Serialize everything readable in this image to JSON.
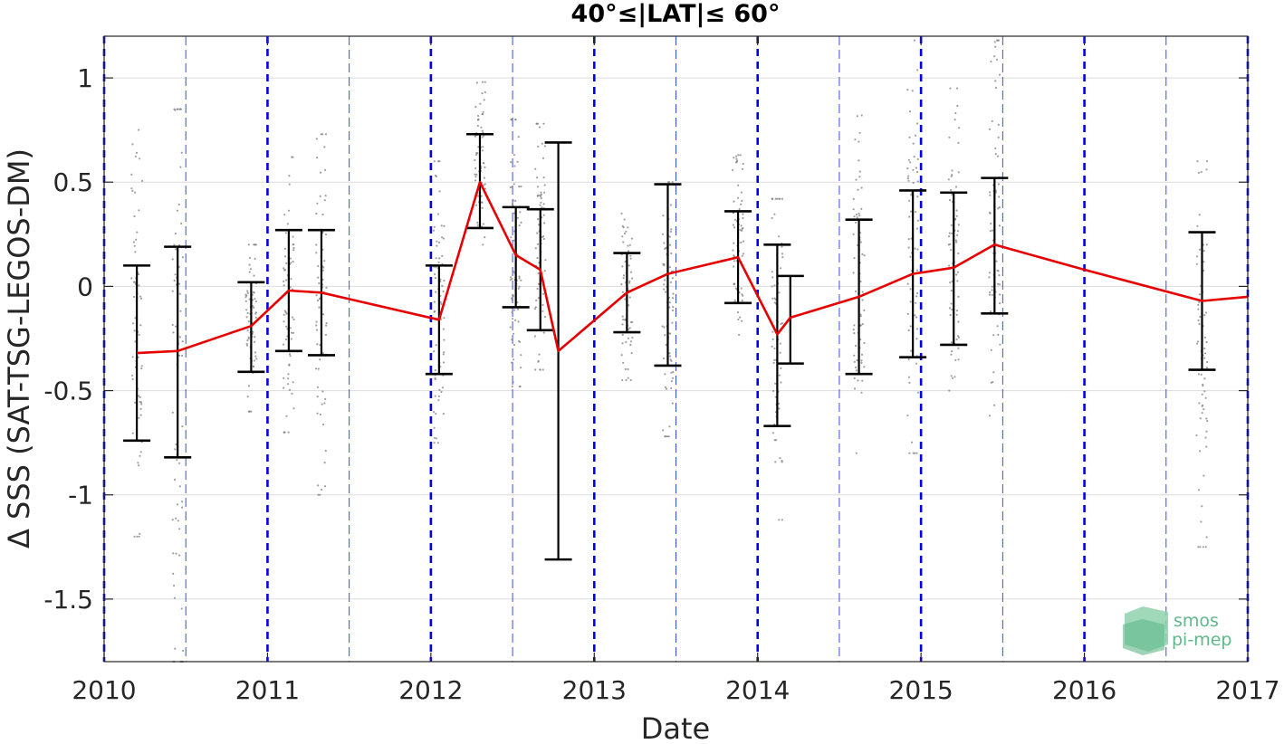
{
  "chart_data": {
    "type": "line",
    "title": "40°≤|LAT|≤ 60°",
    "xlabel": "Date",
    "ylabel": "Δ SSS (SAT-TSG-LEGOS-DM)",
    "xlim": [
      2010.0,
      2017.0
    ],
    "ylim": [
      -1.8,
      1.2
    ],
    "x_ticks": [
      2010,
      2011,
      2012,
      2013,
      2014,
      2015,
      2016,
      2017
    ],
    "x_tick_labels": [
      "2010",
      "2011",
      "2012",
      "2013",
      "2014",
      "2015",
      "2016",
      "2017"
    ],
    "y_ticks": [
      1,
      0.5,
      0,
      -0.5,
      -1,
      -1.5
    ],
    "y_tick_labels": [
      "1",
      "0.5",
      "0",
      "-0.5",
      "-1",
      "-1.5"
    ],
    "grid": true,
    "year_lines": [
      2010.0,
      2011.0,
      2012.0,
      2013.0,
      2014.0,
      2015.0,
      2016.0,
      2017.0
    ],
    "half_year_lines": [
      2010.5,
      2011.5,
      2012.5,
      2013.5,
      2014.5,
      2015.5,
      2016.5
    ],
    "colors": {
      "mean_line": "#e60000",
      "error_bars": "#000000",
      "year_lines": "#0000ee",
      "scatter": "#808080"
    },
    "series": [
      {
        "x": [
          2010.2,
          2010.45,
          2010.9,
          2011.13,
          2011.33,
          2012.05,
          2012.3,
          2012.52,
          2012.67,
          2012.78,
          2013.2,
          2013.45,
          2013.88,
          2014.12,
          2014.2,
          2014.62,
          2014.95,
          2015.2,
          2015.45,
          2016.0,
          2016.72,
          2017.0
        ],
        "values": [
          -0.32,
          -0.31,
          -0.19,
          -0.02,
          -0.03,
          -0.16,
          0.5,
          0.15,
          0.08,
          -0.31,
          -0.03,
          0.06,
          0.14,
          -0.23,
          -0.15,
          -0.05,
          0.06,
          0.09,
          0.2,
          0.08,
          -0.07,
          -0.05
        ]
      }
    ],
    "error_bars": [
      {
        "x": 2010.2,
        "low": -0.74,
        "high": 0.1
      },
      {
        "x": 2010.45,
        "low": -0.82,
        "high": 0.19
      },
      {
        "x": 2010.9,
        "low": -0.41,
        "high": 0.02
      },
      {
        "x": 2011.13,
        "low": -0.31,
        "high": 0.27
      },
      {
        "x": 2011.33,
        "low": -0.33,
        "high": 0.27
      },
      {
        "x": 2012.05,
        "low": -0.42,
        "high": 0.1
      },
      {
        "x": 2012.3,
        "low": 0.28,
        "high": 0.73
      },
      {
        "x": 2012.52,
        "low": -0.1,
        "high": 0.38
      },
      {
        "x": 2012.67,
        "low": -0.21,
        "high": 0.37
      },
      {
        "x": 2012.78,
        "low": -1.31,
        "high": 0.69
      },
      {
        "x": 2013.2,
        "low": -0.22,
        "high": 0.16
      },
      {
        "x": 2013.45,
        "low": -0.38,
        "high": 0.49
      },
      {
        "x": 2013.88,
        "low": -0.08,
        "high": 0.36
      },
      {
        "x": 2014.12,
        "low": -0.67,
        "high": 0.2
      },
      {
        "x": 2014.2,
        "low": -0.37,
        "high": 0.05
      },
      {
        "x": 2014.62,
        "low": -0.42,
        "high": 0.32
      },
      {
        "x": 2014.95,
        "low": -0.34,
        "high": 0.46
      },
      {
        "x": 2015.2,
        "low": -0.28,
        "high": 0.45
      },
      {
        "x": 2015.45,
        "low": -0.13,
        "high": 0.52
      },
      {
        "x": 2016.72,
        "low": -0.4,
        "high": 0.26
      }
    ],
    "scatter_spread": [
      {
        "x": 2010.2,
        "min": -1.2,
        "max": 0.75
      },
      {
        "x": 2010.45,
        "min": -1.8,
        "max": 0.85
      },
      {
        "x": 2010.9,
        "min": -0.6,
        "max": 0.2
      },
      {
        "x": 2011.13,
        "min": -0.7,
        "max": 0.62
      },
      {
        "x": 2011.33,
        "min": -1.0,
        "max": 0.73
      },
      {
        "x": 2012.05,
        "min": -0.75,
        "max": 0.6
      },
      {
        "x": 2012.3,
        "min": 0.2,
        "max": 0.98
      },
      {
        "x": 2012.52,
        "min": -0.48,
        "max": 0.8
      },
      {
        "x": 2012.67,
        "min": -0.4,
        "max": 0.78
      },
      {
        "x": 2013.2,
        "min": -0.45,
        "max": 0.35
      },
      {
        "x": 2013.45,
        "min": -0.72,
        "max": 0.5
      },
      {
        "x": 2013.88,
        "min": -0.3,
        "max": 0.63
      },
      {
        "x": 2014.12,
        "min": -1.12,
        "max": 0.42
      },
      {
        "x": 2014.62,
        "min": -0.8,
        "max": 0.82
      },
      {
        "x": 2014.95,
        "min": -0.8,
        "max": 1.18
      },
      {
        "x": 2015.2,
        "min": -0.5,
        "max": 0.95
      },
      {
        "x": 2015.45,
        "min": -0.62,
        "max": 1.18
      },
      {
        "x": 2016.72,
        "min": -1.25,
        "max": 0.6
      }
    ]
  },
  "logo": {
    "line1": "smos",
    "line2": "pi-mep",
    "color": "#5fb88a"
  }
}
